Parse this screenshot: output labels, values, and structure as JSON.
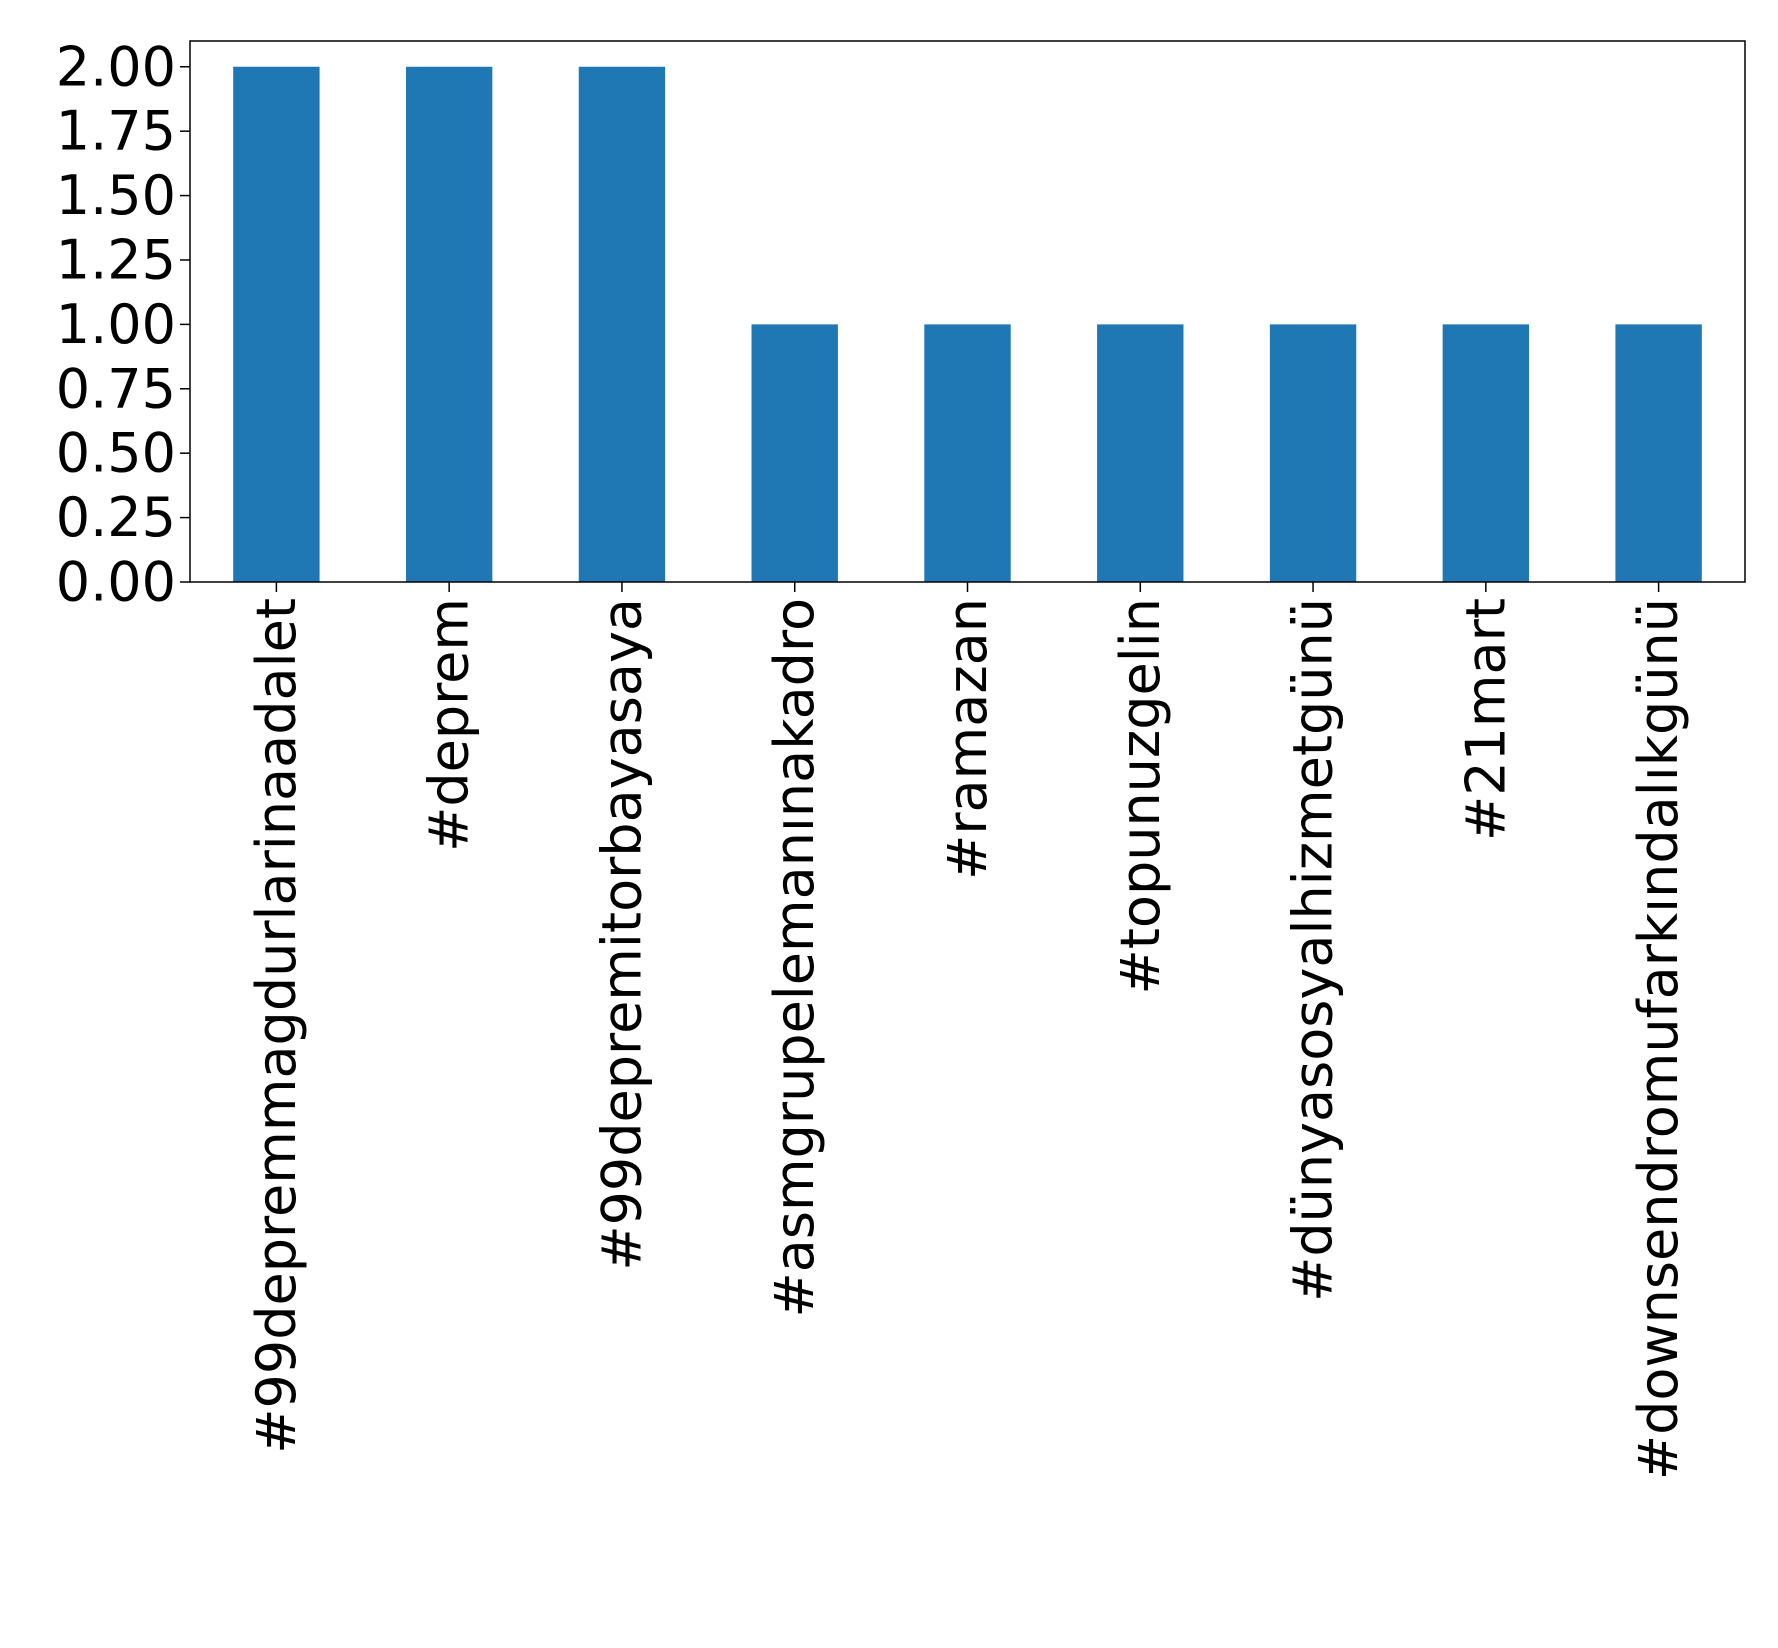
{
  "chart_data": {
    "type": "bar",
    "title": "",
    "xlabel": "",
    "ylabel": "",
    "categories": [
      "#99depremmagdurlarinaadalet",
      "#deprem",
      "#99depremitorbayasaya",
      "#asmgrupelemanınakadro",
      "#ramazan",
      "#topunuzgelin",
      "#dünyasosyalhizmetgünü",
      "#21mart",
      "#downsendromufarkındalıkgünü"
    ],
    "values": [
      2,
      2,
      2,
      1,
      1,
      1,
      1,
      1,
      1
    ],
    "ylim": [
      0,
      2.1
    ],
    "yticks": [
      "0.00",
      "0.25",
      "0.50",
      "0.75",
      "1.00",
      "1.25",
      "1.50",
      "1.75",
      "2.00"
    ],
    "bar_color": "#1f77b4",
    "grid": false,
    "legend": "none",
    "xtick_rotation": "vertical"
  }
}
